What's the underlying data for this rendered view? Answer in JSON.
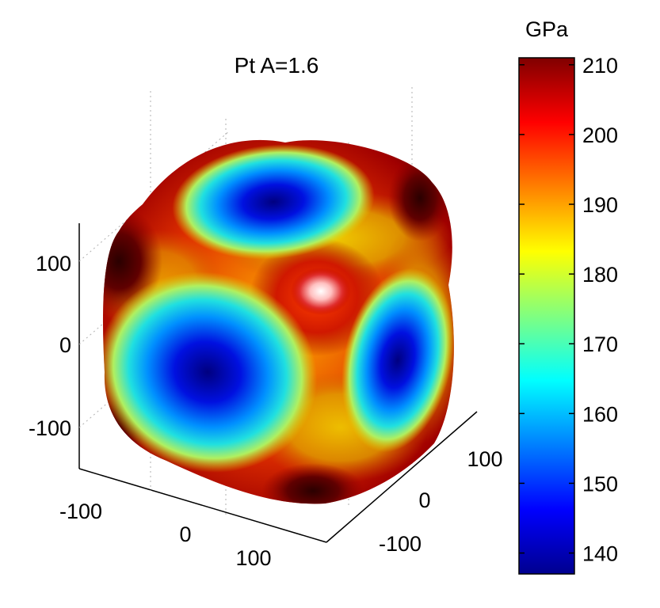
{
  "chart_data": {
    "type": "surface3d",
    "title": "Pt A=1.6",
    "colorbar": {
      "label": "GPa",
      "range": [
        137,
        211
      ],
      "ticks": [
        "210",
        "200",
        "190",
        "180",
        "170",
        "160",
        "150",
        "140"
      ],
      "colormap": [
        "#00008f",
        "#0000ff",
        "#00ffff",
        "#ffff00",
        "#ff0000",
        "#800000"
      ]
    },
    "axes": {
      "z_ticks": [
        "100",
        "0",
        "-100"
      ],
      "x_ticks": [
        "-100",
        "0",
        "100"
      ],
      "y_ticks": [
        "-100",
        "0",
        "100"
      ],
      "grid": true
    },
    "surface": {
      "description_values_gpa": {
        "min_face_centers": 137,
        "max_corners": 211
      }
    }
  },
  "colors": {
    "face_min": "#00008f",
    "mid": "#ffff00",
    "corner_max": "#800000",
    "highlight": "#ffffff"
  }
}
